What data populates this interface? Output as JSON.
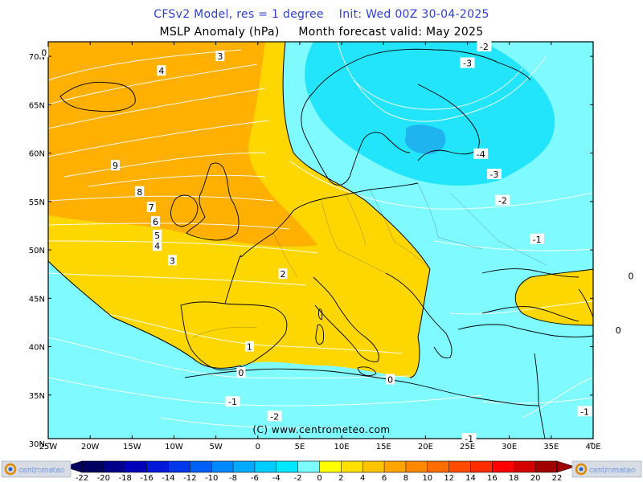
{
  "titles": {
    "line1": "CFSv2 Model, res = 1 degree    Init: Wed 00Z 30-04-2025",
    "line2": "MSLP Anomaly (hPa)     Month forecast valid: May 2025"
  },
  "copyright": "(C) www.centrometeo.com",
  "logo": {
    "text": "centrometeo",
    "icon": "centrometeo-logo-icon"
  },
  "axes": {
    "lon_labels": [
      "25W",
      "20W",
      "15W",
      "10W",
      "5W",
      "0",
      "5E",
      "10E",
      "15E",
      "20E",
      "25E",
      "30E",
      "35E",
      "40E"
    ],
    "lat_labels": [
      "70N",
      "65N",
      "60N",
      "55N",
      "50N",
      "45N",
      "40N",
      "35N",
      "30N"
    ]
  },
  "colorbar": {
    "labels": [
      "-22",
      "-20",
      "-18",
      "-16",
      "-14",
      "-12",
      "-10",
      "-8",
      "-6",
      "-4",
      "-2",
      "0",
      "2",
      "4",
      "6",
      "8",
      "10",
      "12",
      "14",
      "16",
      "18",
      "20",
      "22"
    ],
    "colors": [
      "#000060",
      "#00008a",
      "#0000b8",
      "#0018d8",
      "#0038ec",
      "#0060f8",
      "#0088ff",
      "#00aaff",
      "#00ccff",
      "#00e8ff",
      "#7cfcff",
      "#ffff00",
      "#ffe000",
      "#ffc400",
      "#ffa400",
      "#ff8800",
      "#ff6c00",
      "#ff4c00",
      "#ff2c00",
      "#ff0000",
      "#d40000",
      "#a00000"
    ]
  },
  "colors": {
    "pos2": "#ffd700",
    "pos4": "#ffb000",
    "neg0": "#7ffaff",
    "neg2": "#22e4fa",
    "neg4": "#1fb3f0"
  },
  "contour_labels": [
    {
      "text": "0",
      "lon": -25.5,
      "lat": 70.4
    },
    {
      "text": "3",
      "lon": -4.5,
      "lat": 70.0
    },
    {
      "text": "4",
      "lon": -11.5,
      "lat": 68.5
    },
    {
      "text": "9",
      "lon": -17.0,
      "lat": 58.7
    },
    {
      "text": "8",
      "lon": -14.1,
      "lat": 56.0
    },
    {
      "text": "7",
      "lon": -12.7,
      "lat": 54.4
    },
    {
      "text": "6",
      "lon": -12.2,
      "lat": 52.9
    },
    {
      "text": "5",
      "lon": -12.0,
      "lat": 51.5
    },
    {
      "text": "4",
      "lon": -12.0,
      "lat": 50.4
    },
    {
      "text": "3",
      "lon": -10.2,
      "lat": 48.9
    },
    {
      "text": "2",
      "lon": 3.0,
      "lat": 47.5
    },
    {
      "text": "1",
      "lon": -1.0,
      "lat": 40.0
    },
    {
      "text": "0",
      "lon": -2.0,
      "lat": 37.3
    },
    {
      "text": "0",
      "lon": 15.8,
      "lat": 36.6
    },
    {
      "text": "-1",
      "lon": -3.0,
      "lat": 34.3
    },
    {
      "text": "-2",
      "lon": 2.0,
      "lat": 32.8
    },
    {
      "text": "-1",
      "lon": 25.2,
      "lat": 30.5
    },
    {
      "text": "-2",
      "lon": 27.0,
      "lat": 71.0
    },
    {
      "text": "-3",
      "lon": 25.0,
      "lat": 69.3
    },
    {
      "text": "-4",
      "lon": 26.6,
      "lat": 59.9
    },
    {
      "text": "-3",
      "lon": 28.2,
      "lat": 57.8
    },
    {
      "text": "-2",
      "lon": 29.2,
      "lat": 55.1
    },
    {
      "text": "-1",
      "lon": 33.3,
      "lat": 51.1
    },
    {
      "text": "0",
      "lon": 44.5,
      "lat": 47.3
    },
    {
      "text": "0",
      "lon": 43.0,
      "lat": 41.7
    },
    {
      "text": "-1",
      "lon": 39.0,
      "lat": 33.3
    }
  ]
}
